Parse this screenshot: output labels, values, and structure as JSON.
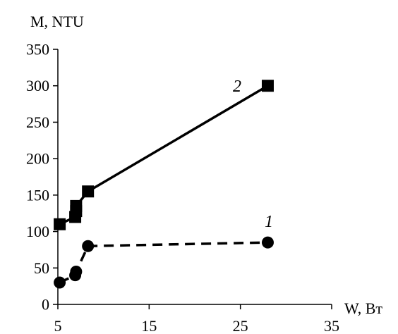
{
  "chart_data": {
    "type": "line",
    "title": "",
    "xlabel": "W, Вт",
    "ylabel": "M, NTU",
    "xlim": [
      5,
      35
    ],
    "ylim": [
      0,
      350
    ],
    "xticks": [
      5,
      15,
      25,
      35
    ],
    "yticks": [
      0,
      50,
      100,
      150,
      200,
      250,
      300,
      350
    ],
    "grid": false,
    "series": [
      {
        "label": "1",
        "style": "dashed",
        "marker": "circle",
        "color": "#000000",
        "points": [
          {
            "x": 5.2,
            "y": 30
          },
          {
            "x": 6.9,
            "y": 40
          },
          {
            "x": 7.0,
            "y": 45
          },
          {
            "x": 8.3,
            "y": 80
          },
          {
            "x": 28.0,
            "y": 85
          }
        ]
      },
      {
        "label": "2",
        "style": "solid",
        "marker": "square",
        "color": "#000000",
        "points": [
          {
            "x": 5.2,
            "y": 110
          },
          {
            "x": 6.9,
            "y": 120
          },
          {
            "x": 7.0,
            "y": 128
          },
          {
            "x": 7.0,
            "y": 135
          },
          {
            "x": 8.3,
            "y": 155
          },
          {
            "x": 28.0,
            "y": 300
          }
        ]
      }
    ]
  }
}
